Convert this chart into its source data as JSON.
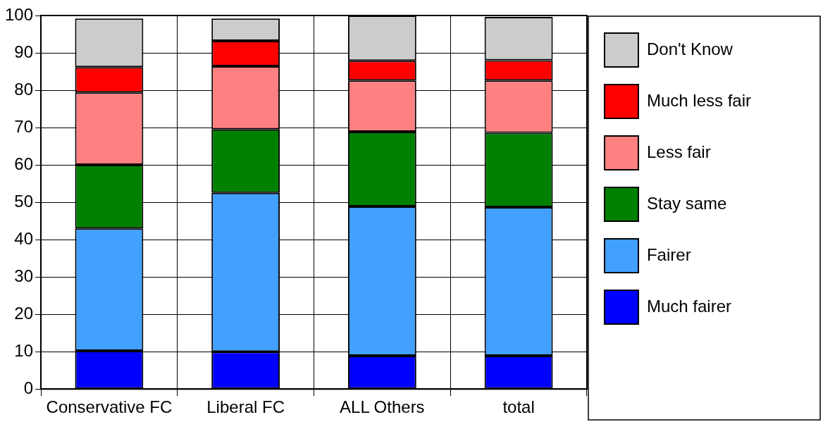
{
  "chart_data": {
    "type": "bar",
    "stacked": true,
    "categories": [
      "Conservative FC",
      "Liberal FC",
      "ALL Others",
      "total"
    ],
    "series": [
      {
        "name": "Much fairer",
        "color": "#0000ff",
        "values": [
          10.2,
          10,
          8.9,
          8.9
        ]
      },
      {
        "name": "Fairer",
        "color": "#42a0ff",
        "values": [
          32.8,
          42.5,
          40,
          39.8
        ]
      },
      {
        "name": "Stay same",
        "color": "#008000",
        "values": [
          17,
          17,
          20,
          19.9
        ]
      },
      {
        "name": "Less fair",
        "color": "#ff8080",
        "values": [
          19.4,
          16.9,
          13.7,
          14
        ]
      },
      {
        "name": "Much less fair",
        "color": "#ff0000",
        "values": [
          6.8,
          6.8,
          5.3,
          5.4
        ]
      },
      {
        "name": "Don't Know",
        "color": "#cccccc",
        "values": [
          13,
          6,
          12.1,
          11.6
        ]
      }
    ],
    "ylim": [
      0,
      100
    ],
    "yticks": [
      0,
      10,
      20,
      30,
      40,
      50,
      60,
      70,
      80,
      90,
      100
    ],
    "grid": true,
    "legend": "top right"
  }
}
